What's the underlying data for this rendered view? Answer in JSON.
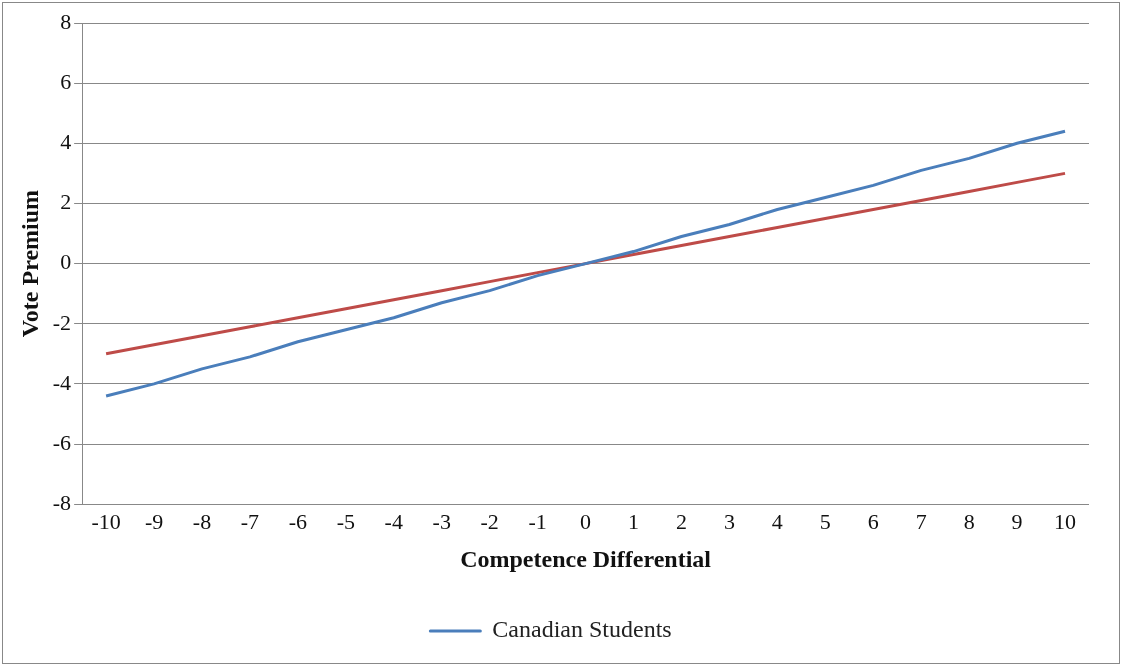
{
  "chart_data": {
    "type": "line",
    "xlabel": "Competence Differential",
    "ylabel": "Vote Premium",
    "categories": [
      "-10",
      "-9",
      "-8",
      "-7",
      "-6",
      "-5",
      "-4",
      "-3",
      "-2",
      "-1",
      "0",
      "1",
      "2",
      "3",
      "4",
      "5",
      "6",
      "7",
      "8",
      "9",
      "10"
    ],
    "series": [
      {
        "name": "Canadian Students",
        "color": "#4a7ebb",
        "values": [
          -4.4,
          -4.0,
          -3.5,
          -3.1,
          -2.6,
          -2.2,
          -1.8,
          -1.3,
          -0.9,
          -0.4,
          0,
          0.4,
          0.9,
          1.3,
          1.8,
          2.2,
          2.6,
          3.1,
          3.5,
          4.0,
          4.4
        ]
      },
      {
        "color": "#be4b48",
        "values": [
          -3,
          -2.7,
          -2.4,
          -2.1,
          -1.8,
          -1.5,
          -1.2,
          -0.9,
          -0.6,
          -0.3,
          0,
          0.3,
          0.6,
          0.9,
          1.2,
          1.5,
          1.8,
          2.1,
          2.4,
          2.7,
          3
        ]
      }
    ],
    "ylim": [
      -8,
      8
    ],
    "yticks": [
      -8,
      -6,
      -4,
      -2,
      0,
      2,
      4,
      6,
      8
    ],
    "grid": "y",
    "legend": "bottom",
    "marker": "none",
    "line_style": "solid"
  }
}
